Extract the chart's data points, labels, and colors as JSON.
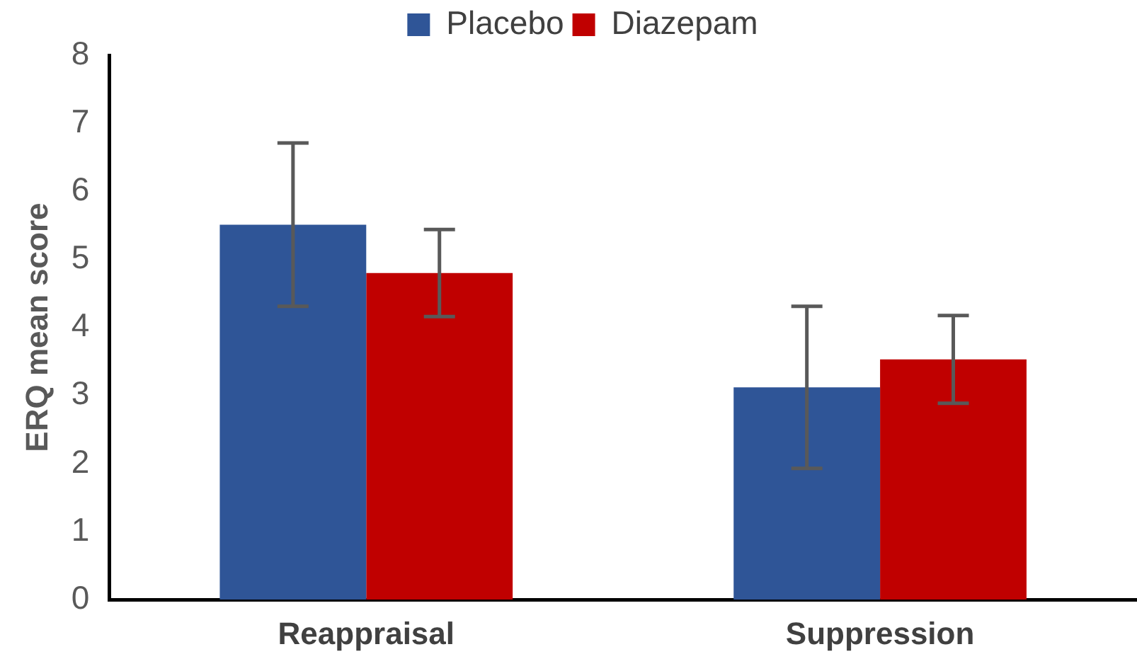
{
  "chart_data": {
    "type": "bar",
    "ylabel": "ERQ mean score",
    "categories": [
      "Reappraisal",
      "Suppression"
    ],
    "series": [
      {
        "name": "Placebo",
        "color": "#2f5597",
        "values": [
          5.51,
          3.12
        ],
        "errors": [
          1.2,
          1.19
        ]
      },
      {
        "name": "Diazepam",
        "color": "#c00000",
        "values": [
          4.8,
          3.53
        ],
        "errors": [
          0.64,
          0.645
        ]
      }
    ],
    "ylim": [
      0,
      8
    ],
    "yticks": [
      0,
      1,
      2,
      3,
      4,
      5,
      6,
      7,
      8
    ],
    "grid": false,
    "legend": "top"
  }
}
